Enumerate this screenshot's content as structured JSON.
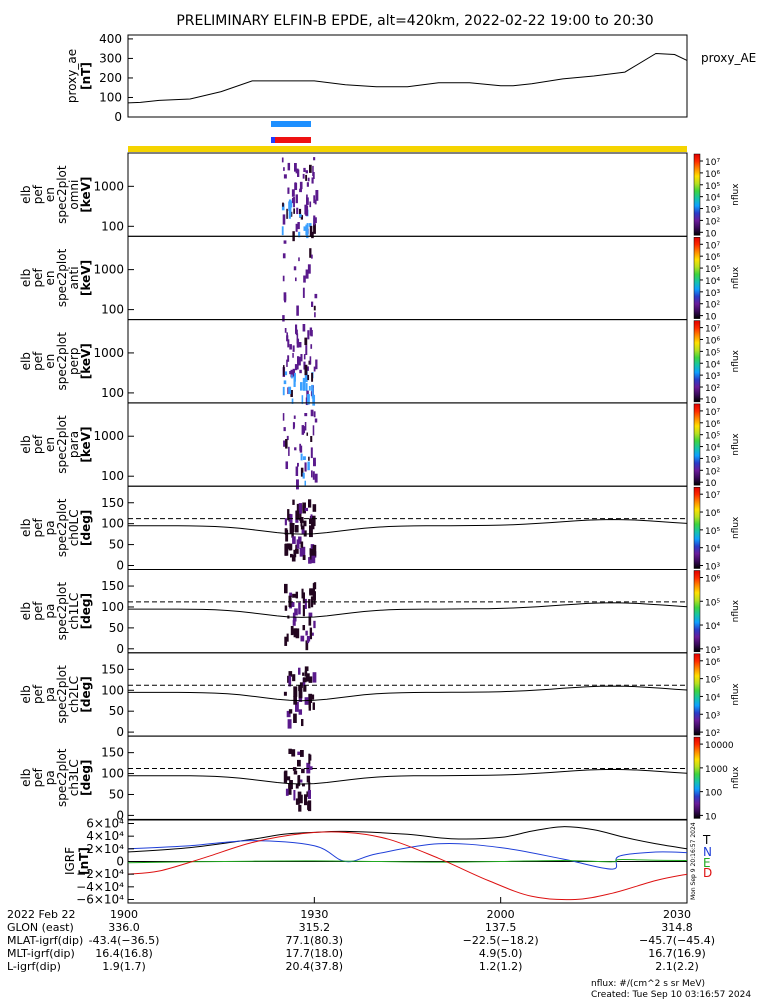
{
  "title": "PRELIMINARY ELFIN-B EPDE, alt=420km, 2022-02-22 19:00 to 20:30",
  "colors": {
    "ae_line": "#000000",
    "bar_blue": "#1e90ff",
    "bar_red": "#ee1111",
    "bar_yellow": "#f5d400",
    "T": "#000000",
    "N": "#1f3fd8",
    "E": "#22aa22",
    "D": "#dd1111",
    "spec_purple": "#5a1a8c",
    "spec_blue": "#3aa0ff",
    "spec_dark": "#22051f"
  },
  "colorbar_stops": [
    "#000000",
    "#3a0a5a",
    "#6a1b9a",
    "#2a3cc8",
    "#0fa0ff",
    "#17c4a8",
    "#3ed43e",
    "#b7e020",
    "#ffe000",
    "#ff8a00",
    "#ff2a00",
    "#e00000"
  ],
  "time_axis": {
    "start": "19:00",
    "end": "20:30",
    "start_min": 0,
    "end_min": 90
  },
  "proxy_ae": {
    "name": "proxy_AE",
    "ylabel": "proxy_ae",
    "units": "[nT]",
    "yticks": [
      "400",
      "300",
      "200",
      "100",
      "0"
    ],
    "ylim": [
      0,
      420
    ]
  },
  "spec_panels": [
    {
      "id": "omni",
      "label": [
        "elb",
        "pef",
        "en",
        "spec2plot",
        "omni",
        "[keV]"
      ],
      "yticks": [
        "1000",
        "100"
      ],
      "cb_ticks": [
        "10⁷",
        "10⁶",
        "10⁵",
        "10⁴",
        "10³",
        "10²",
        "10"
      ],
      "cb_label": "nflux"
    },
    {
      "id": "anti",
      "label": [
        "elb",
        "pef",
        "en",
        "spec2plot",
        "anti",
        "[keV]"
      ],
      "yticks": [
        "1000",
        "100"
      ],
      "cb_ticks": [
        "10⁷",
        "10⁶",
        "10⁵",
        "10⁴",
        "10³",
        "10²",
        "10"
      ],
      "cb_label": "nflux"
    },
    {
      "id": "perp",
      "label": [
        "elb",
        "pef",
        "en",
        "spec2plot",
        "perp",
        "[keV]"
      ],
      "yticks": [
        "1000",
        "100"
      ],
      "cb_ticks": [
        "10⁷",
        "10⁶",
        "10⁵",
        "10⁴",
        "10³",
        "10²",
        "10"
      ],
      "cb_label": "nflux"
    },
    {
      "id": "para",
      "label": [
        "elb",
        "pef",
        "en",
        "spec2plot",
        "para",
        "[keV]"
      ],
      "yticks": [
        "1000",
        "100"
      ],
      "cb_ticks": [
        "10⁷",
        "10⁶",
        "10⁵",
        "10⁴",
        "10³",
        "10²",
        "10"
      ],
      "cb_label": "nflux"
    }
  ],
  "pa_panels": [
    {
      "id": "ch0LC",
      "label": [
        "elb",
        "pef",
        "pa",
        "spec2plot",
        "ch0LC",
        "[deg]"
      ],
      "cb_ticks": [
        "10⁷",
        "10⁶",
        "10⁵",
        "10⁴",
        "10³"
      ],
      "cb_label": "nflux"
    },
    {
      "id": "ch1LC",
      "label": [
        "elb",
        "pef",
        "pa",
        "spec2plot",
        "ch1LC",
        "[deg]"
      ],
      "cb_ticks": [
        "10⁶",
        "10⁵",
        "10⁴",
        "10³"
      ],
      "cb_label": "nflux"
    },
    {
      "id": "ch2LC",
      "label": [
        "elb",
        "pef",
        "pa",
        "spec2plot",
        "ch2LC",
        "[deg]"
      ],
      "cb_ticks": [
        "10⁶",
        "10⁵",
        "10⁴",
        "10³",
        "10²"
      ],
      "cb_label": "nflux"
    },
    {
      "id": "ch3LC",
      "label": [
        "elb",
        "pef",
        "pa",
        "spec2plot",
        "ch3LC",
        "[deg]"
      ],
      "cb_ticks": [
        "10000",
        "1000",
        "100",
        "10"
      ],
      "cb_label": "nflux"
    }
  ],
  "pa_yticks": [
    "150",
    "100",
    "50",
    "0"
  ],
  "igrf": {
    "ylabel": "IGRF",
    "units": "[nT]",
    "yticks": [
      "6×10⁴",
      "4×10⁴",
      "2×10⁴",
      "0",
      "−2×10⁴",
      "−4×10⁴",
      "−6×10⁴"
    ],
    "ylim": [
      -60000,
      60000
    ],
    "legend": [
      "T",
      "N",
      "E",
      "D"
    ],
    "side_stamp": "Mon Sep 9 20:16:57 2024"
  },
  "footer": {
    "row_labels": [
      "2022 Feb 22",
      "GLON (east)",
      "MLAT-igrf(dip)",
      "MLT-igrf(dip)",
      "L-igrf(dip)"
    ],
    "columns": [
      [
        "1900",
        "336.0",
        "-43.4(−36.5)",
        "16.4(16.8)",
        "1.9(1.7)"
      ],
      [
        "1930",
        "315.2",
        "77.1(80.3)",
        "17.7(18.0)",
        "20.4(37.8)"
      ],
      [
        "2000",
        "137.5",
        "−22.5(−18.2)",
        "4.9(5.0)",
        "1.2(1.2)"
      ],
      [
        "2030",
        "314.8",
        "−45.7(−45.4)",
        "16.7(16.9)",
        "2.1(2.2)"
      ]
    ],
    "units_note": "nflux: #/(cm^2 s sr MeV)",
    "created": "Created: Tue Sep 10 03:16:57 2024"
  },
  "chart_data": {
    "type": "line",
    "title": "PRELIMINARY ELFIN-B EPDE, alt=420km, 2022-02-22 19:00 to 20:30",
    "x_unit": "minutes after 19:00",
    "x_tick_labels": [
      "1900",
      "1930",
      "2000",
      "2030"
    ],
    "series": [
      {
        "name": "proxy_AE",
        "x": [
          0,
          2,
          5,
          10,
          15,
          20,
          25,
          27,
          30,
          35,
          40,
          45,
          50,
          55,
          60,
          62,
          65,
          70,
          75,
          80,
          85,
          88,
          90
        ],
        "y": [
          72,
          75,
          85,
          92,
          130,
          185,
          185,
          185,
          185,
          165,
          155,
          155,
          175,
          175,
          160,
          160,
          170,
          195,
          210,
          230,
          325,
          320,
          290
        ]
      },
      {
        "name": "T",
        "x": [
          0,
          10,
          20,
          25,
          30,
          35,
          45,
          52,
          60,
          65,
          70,
          75,
          80,
          85,
          90
        ],
        "y": [
          15000,
          22000,
          35000,
          43000,
          46000,
          47500,
          43000,
          36000,
          38000,
          48000,
          55000,
          50000,
          38000,
          28000,
          20000
        ]
      },
      {
        "name": "N",
        "x": [
          0,
          10,
          20,
          30,
          35,
          40,
          50,
          60,
          70,
          78,
          79,
          85,
          90
        ],
        "y": [
          20000,
          25000,
          33000,
          25000,
          0,
          12000,
          28000,
          22000,
          4000,
          -12000,
          8000,
          15000,
          14000
        ]
      },
      {
        "name": "E",
        "x": [
          0,
          10,
          20,
          30,
          40,
          50,
          60,
          70,
          78,
          79,
          85,
          90
        ],
        "y": [
          -2000,
          -500,
          500,
          1000,
          0,
          -1000,
          0,
          1500,
          -500,
          3000,
          2000,
          1500
        ]
      },
      {
        "name": "D",
        "x": [
          0,
          5,
          12,
          20,
          28,
          35,
          42,
          50,
          58,
          65,
          72,
          78,
          85,
          90
        ],
        "y": [
          -20000,
          -15000,
          5000,
          30000,
          44000,
          46000,
          35000,
          5000,
          -30000,
          -55000,
          -60000,
          -50000,
          -30000,
          -20000
        ]
      }
    ],
    "panels": [
      "proxy_AE",
      "omni",
      "anti",
      "perp",
      "para",
      "ch0LC",
      "ch1LC",
      "ch2LC",
      "ch3LC",
      "IGRF"
    ]
  }
}
